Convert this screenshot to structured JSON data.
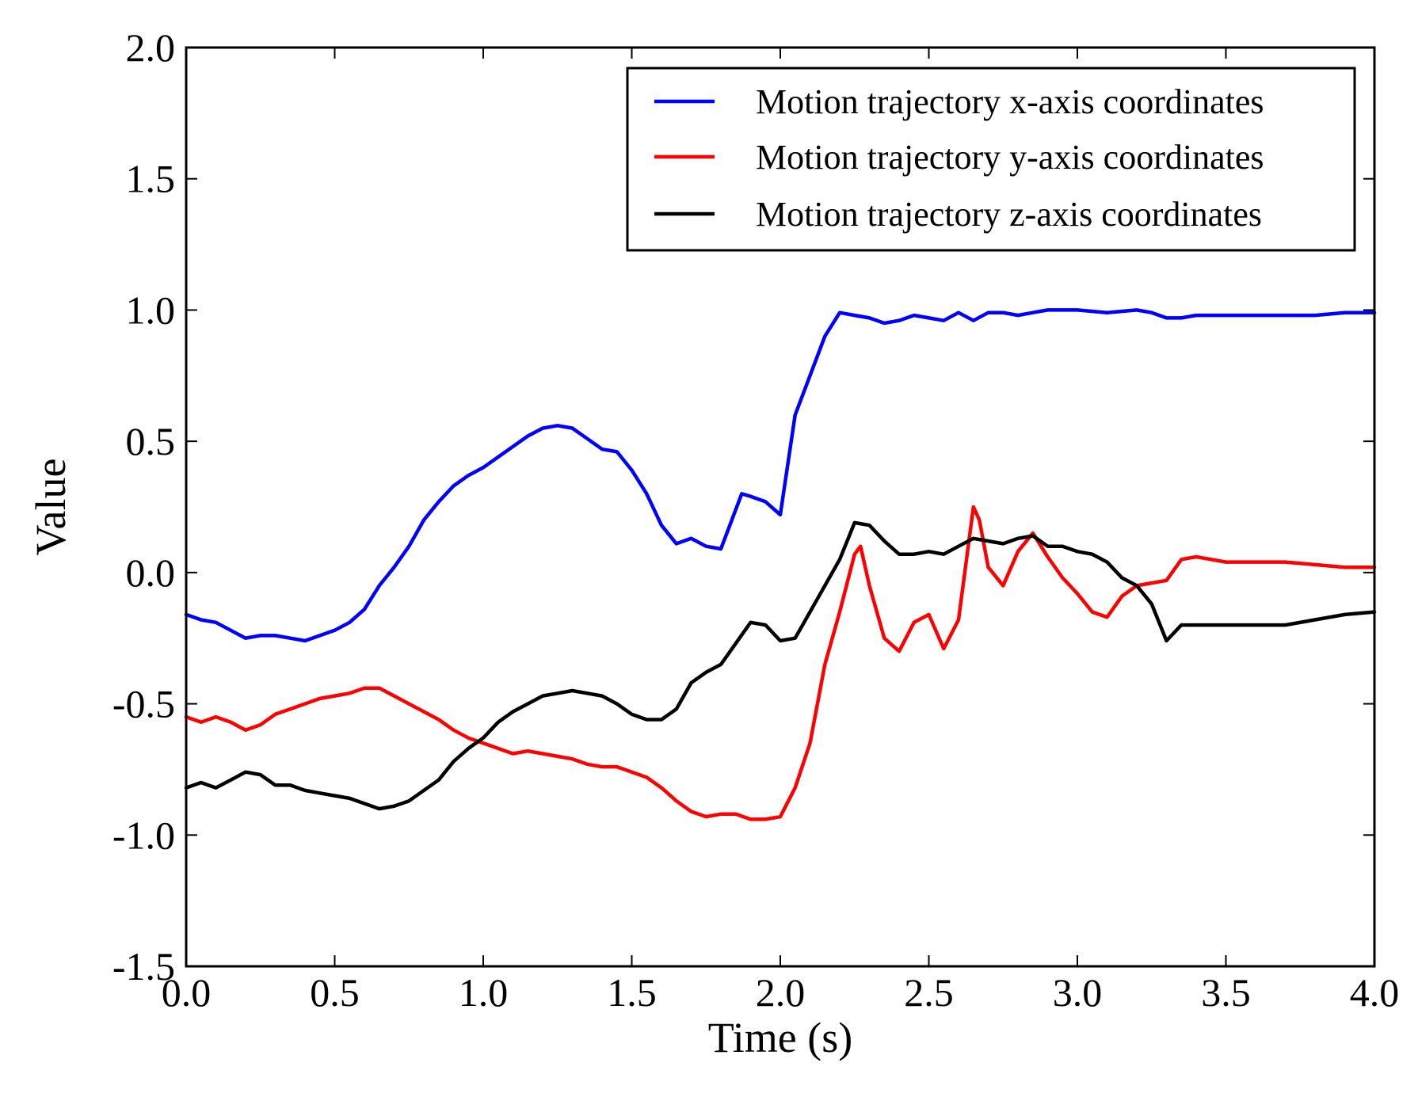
{
  "chart_data": {
    "type": "line",
    "title": "",
    "xlabel": "Time (s)",
    "ylabel": "Value",
    "xlim": [
      0.0,
      4.0
    ],
    "ylim": [
      -1.5,
      2.0
    ],
    "xticks": [
      0.0,
      0.5,
      1.0,
      1.5,
      2.0,
      2.5,
      3.0,
      3.5,
      4.0
    ],
    "xtick_labels": [
      "0.0",
      "0.5",
      "1.0",
      "1.5",
      "2.0",
      "2.5",
      "3.0",
      "3.5",
      "4.0"
    ],
    "yticks": [
      -1.5,
      -1.0,
      -0.5,
      0.0,
      0.5,
      1.0,
      1.5,
      2.0
    ],
    "ytick_labels": [
      "-1.5",
      "-1.0",
      "-0.5",
      "0.0",
      "0.5",
      "1.0",
      "1.5",
      "2.0"
    ],
    "grid": false,
    "legend_position": "top-right",
    "series": [
      {
        "name": "Motion trajectory x-axis coordinates",
        "color": "#0000ff",
        "x": [
          0.0,
          0.05,
          0.1,
          0.15,
          0.2,
          0.25,
          0.3,
          0.35,
          0.4,
          0.45,
          0.5,
          0.55,
          0.6,
          0.65,
          0.7,
          0.75,
          0.8,
          0.85,
          0.9,
          0.95,
          1.0,
          1.05,
          1.1,
          1.15,
          1.2,
          1.25,
          1.3,
          1.35,
          1.4,
          1.45,
          1.5,
          1.55,
          1.6,
          1.65,
          1.7,
          1.75,
          1.8,
          1.83,
          1.87,
          1.9,
          1.95,
          2.0,
          2.05,
          2.1,
          2.15,
          2.2,
          2.25,
          2.3,
          2.35,
          2.4,
          2.45,
          2.5,
          2.55,
          2.6,
          2.65,
          2.7,
          2.75,
          2.8,
          2.85,
          2.9,
          3.0,
          3.1,
          3.2,
          3.25,
          3.3,
          3.35,
          3.4,
          3.5,
          3.6,
          3.7,
          3.8,
          3.9,
          4.0
        ],
        "values": [
          -0.16,
          -0.18,
          -0.19,
          -0.22,
          -0.25,
          -0.24,
          -0.24,
          -0.25,
          -0.26,
          -0.24,
          -0.22,
          -0.19,
          -0.14,
          -0.05,
          0.02,
          0.1,
          0.2,
          0.27,
          0.33,
          0.37,
          0.4,
          0.44,
          0.48,
          0.52,
          0.55,
          0.56,
          0.55,
          0.51,
          0.47,
          0.46,
          0.39,
          0.3,
          0.18,
          0.11,
          0.13,
          0.1,
          0.09,
          0.18,
          0.3,
          0.29,
          0.27,
          0.22,
          0.6,
          0.75,
          0.9,
          0.99,
          0.98,
          0.97,
          0.95,
          0.96,
          0.98,
          0.97,
          0.96,
          0.99,
          0.96,
          0.99,
          0.99,
          0.98,
          0.99,
          1.0,
          1.0,
          0.99,
          1.0,
          0.99,
          0.97,
          0.97,
          0.98,
          0.98,
          0.98,
          0.98,
          0.98,
          0.99,
          0.99
        ]
      },
      {
        "name": "Motion trajectory y-axis coordinates",
        "color": "#ff0000",
        "x": [
          0.0,
          0.05,
          0.1,
          0.15,
          0.2,
          0.25,
          0.3,
          0.35,
          0.4,
          0.45,
          0.5,
          0.55,
          0.6,
          0.65,
          0.7,
          0.75,
          0.8,
          0.85,
          0.9,
          0.95,
          1.0,
          1.05,
          1.1,
          1.15,
          1.2,
          1.25,
          1.3,
          1.35,
          1.4,
          1.45,
          1.5,
          1.55,
          1.6,
          1.65,
          1.7,
          1.75,
          1.8,
          1.85,
          1.9,
          1.95,
          2.0,
          2.05,
          2.1,
          2.15,
          2.2,
          2.25,
          2.27,
          2.3,
          2.35,
          2.4,
          2.45,
          2.5,
          2.55,
          2.6,
          2.65,
          2.67,
          2.7,
          2.75,
          2.8,
          2.85,
          2.9,
          2.95,
          3.0,
          3.05,
          3.1,
          3.15,
          3.2,
          3.25,
          3.3,
          3.35,
          3.4,
          3.5,
          3.6,
          3.7,
          3.8,
          3.9,
          4.0
        ],
        "values": [
          -0.55,
          -0.57,
          -0.55,
          -0.57,
          -0.6,
          -0.58,
          -0.54,
          -0.52,
          -0.5,
          -0.48,
          -0.47,
          -0.46,
          -0.44,
          -0.44,
          -0.47,
          -0.5,
          -0.53,
          -0.56,
          -0.6,
          -0.63,
          -0.65,
          -0.67,
          -0.69,
          -0.68,
          -0.69,
          -0.7,
          -0.71,
          -0.73,
          -0.74,
          -0.74,
          -0.76,
          -0.78,
          -0.82,
          -0.87,
          -0.91,
          -0.93,
          -0.92,
          -0.92,
          -0.94,
          -0.94,
          -0.93,
          -0.82,
          -0.65,
          -0.35,
          -0.15,
          0.07,
          0.1,
          -0.05,
          -0.25,
          -0.3,
          -0.19,
          -0.16,
          -0.29,
          -0.18,
          0.25,
          0.2,
          0.02,
          -0.05,
          0.08,
          0.15,
          0.06,
          -0.02,
          -0.08,
          -0.15,
          -0.17,
          -0.09,
          -0.05,
          -0.04,
          -0.03,
          0.05,
          0.06,
          0.04,
          0.04,
          0.04,
          0.03,
          0.02,
          0.02
        ]
      },
      {
        "name": "Motion trajectory z-axis coordinates",
        "color": "#000000",
        "x": [
          0.0,
          0.05,
          0.1,
          0.15,
          0.2,
          0.25,
          0.3,
          0.35,
          0.4,
          0.45,
          0.5,
          0.55,
          0.6,
          0.65,
          0.7,
          0.75,
          0.8,
          0.85,
          0.9,
          0.95,
          1.0,
          1.05,
          1.1,
          1.15,
          1.2,
          1.25,
          1.3,
          1.35,
          1.4,
          1.45,
          1.5,
          1.55,
          1.6,
          1.65,
          1.7,
          1.75,
          1.8,
          1.85,
          1.9,
          1.95,
          2.0,
          2.05,
          2.1,
          2.15,
          2.2,
          2.25,
          2.3,
          2.35,
          2.4,
          2.45,
          2.5,
          2.55,
          2.6,
          2.65,
          2.7,
          2.75,
          2.8,
          2.85,
          2.9,
          2.95,
          3.0,
          3.05,
          3.1,
          3.15,
          3.2,
          3.25,
          3.3,
          3.35,
          3.4,
          3.5,
          3.6,
          3.7,
          3.8,
          3.9,
          4.0
        ],
        "values": [
          -0.82,
          -0.8,
          -0.82,
          -0.79,
          -0.76,
          -0.77,
          -0.81,
          -0.81,
          -0.83,
          -0.84,
          -0.85,
          -0.86,
          -0.88,
          -0.9,
          -0.89,
          -0.87,
          -0.83,
          -0.79,
          -0.72,
          -0.67,
          -0.63,
          -0.57,
          -0.53,
          -0.5,
          -0.47,
          -0.46,
          -0.45,
          -0.46,
          -0.47,
          -0.5,
          -0.54,
          -0.56,
          -0.56,
          -0.52,
          -0.42,
          -0.38,
          -0.35,
          -0.27,
          -0.19,
          -0.2,
          -0.26,
          -0.25,
          -0.15,
          -0.05,
          0.05,
          0.19,
          0.18,
          0.12,
          0.07,
          0.07,
          0.08,
          0.07,
          0.1,
          0.13,
          0.12,
          0.11,
          0.13,
          0.14,
          0.1,
          0.1,
          0.08,
          0.07,
          0.04,
          -0.02,
          -0.05,
          -0.12,
          -0.26,
          -0.2,
          -0.2,
          -0.2,
          -0.2,
          -0.2,
          -0.18,
          -0.16,
          -0.15
        ]
      }
    ]
  }
}
